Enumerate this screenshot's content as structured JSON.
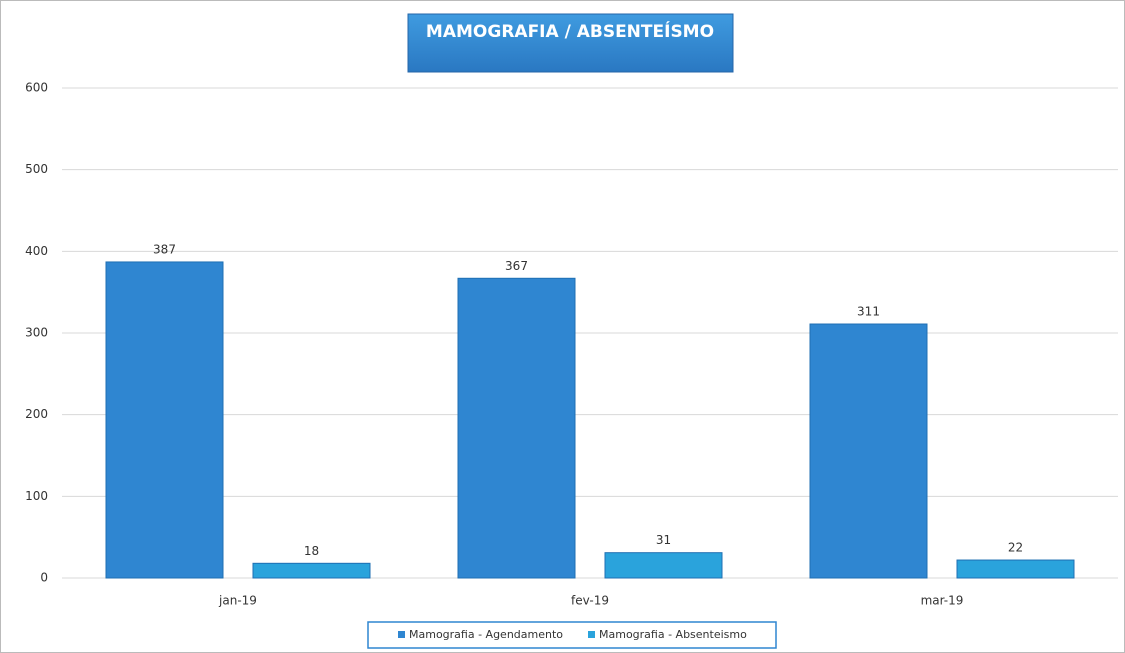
{
  "chart_data": {
    "type": "bar",
    "title": "MAMOGRAFIA / ABSENTEÍSMO",
    "categories": [
      "jan-19",
      "fev-19",
      "mar-19"
    ],
    "series": [
      {
        "name": "Mamografia - Agendamento",
        "color": "#2f86d1",
        "values": [
          387,
          367,
          311
        ]
      },
      {
        "name": "Mamografia - Absenteismo",
        "color": "#2aa3dc",
        "values": [
          18,
          31,
          22
        ]
      }
    ],
    "ylim": [
      0,
      600
    ],
    "yticks": [
      0,
      100,
      200,
      300,
      400,
      500,
      600
    ],
    "grid": true,
    "legend": "bottom"
  }
}
